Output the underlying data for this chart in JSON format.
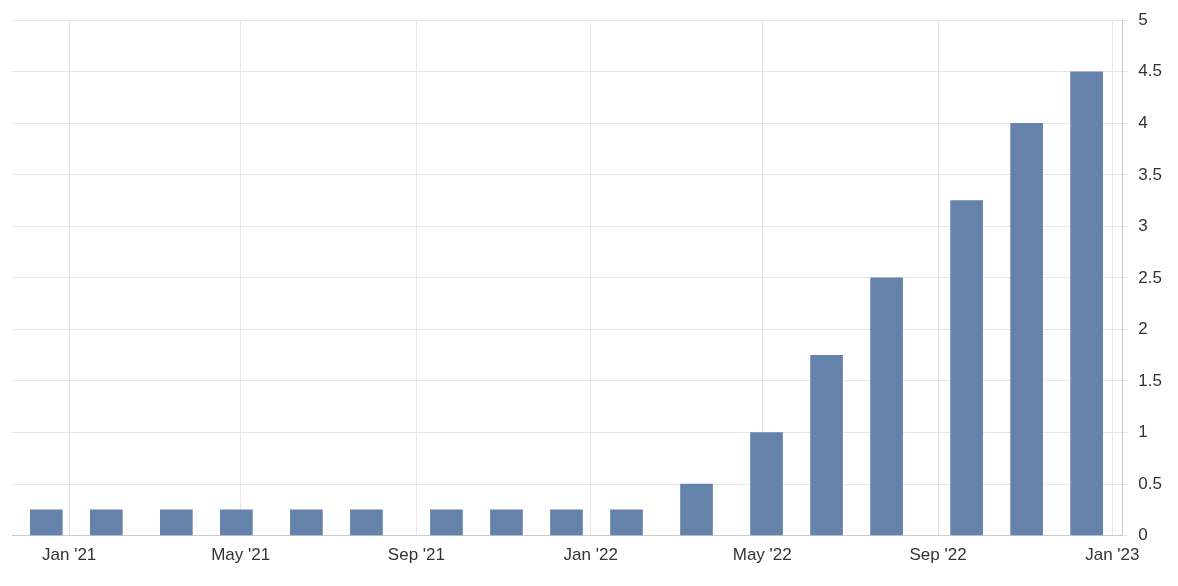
{
  "chart_data": {
    "type": "bar",
    "x": [
      "2020-12-16",
      "2021-01-27",
      "2021-03-17",
      "2021-04-28",
      "2021-06-16",
      "2021-07-28",
      "2021-09-22",
      "2021-11-03",
      "2021-12-15",
      "2022-01-26",
      "2022-03-16",
      "2022-05-04",
      "2022-06-15",
      "2022-07-27",
      "2022-09-21",
      "2022-11-02",
      "2022-12-14"
    ],
    "values": [
      0.25,
      0.25,
      0.25,
      0.25,
      0.25,
      0.25,
      0.25,
      0.25,
      0.25,
      0.25,
      0.5,
      1,
      1.75,
      2.5,
      3.25,
      4,
      4.5
    ],
    "color": "#6582aa",
    "xlim": [
      "2020-11-22",
      "2023-01-08"
    ],
    "xticks": [
      {
        "value": "2021-01-01",
        "label": "Jan '21"
      },
      {
        "value": "2021-05-01",
        "label": "May '21"
      },
      {
        "value": "2021-09-01",
        "label": "Sep '21"
      },
      {
        "value": "2022-01-01",
        "label": "Jan '22"
      },
      {
        "value": "2022-05-01",
        "label": "May '22"
      },
      {
        "value": "2022-09-01",
        "label": "Sep '22"
      },
      {
        "value": "2023-01-01",
        "label": "Jan '23"
      }
    ],
    "ylim": [
      0,
      5
    ],
    "yticks": [
      0,
      0.5,
      1,
      1.5,
      2,
      2.5,
      3,
      3.5,
      4,
      4.5,
      5
    ],
    "grid": true,
    "legend": false
  }
}
